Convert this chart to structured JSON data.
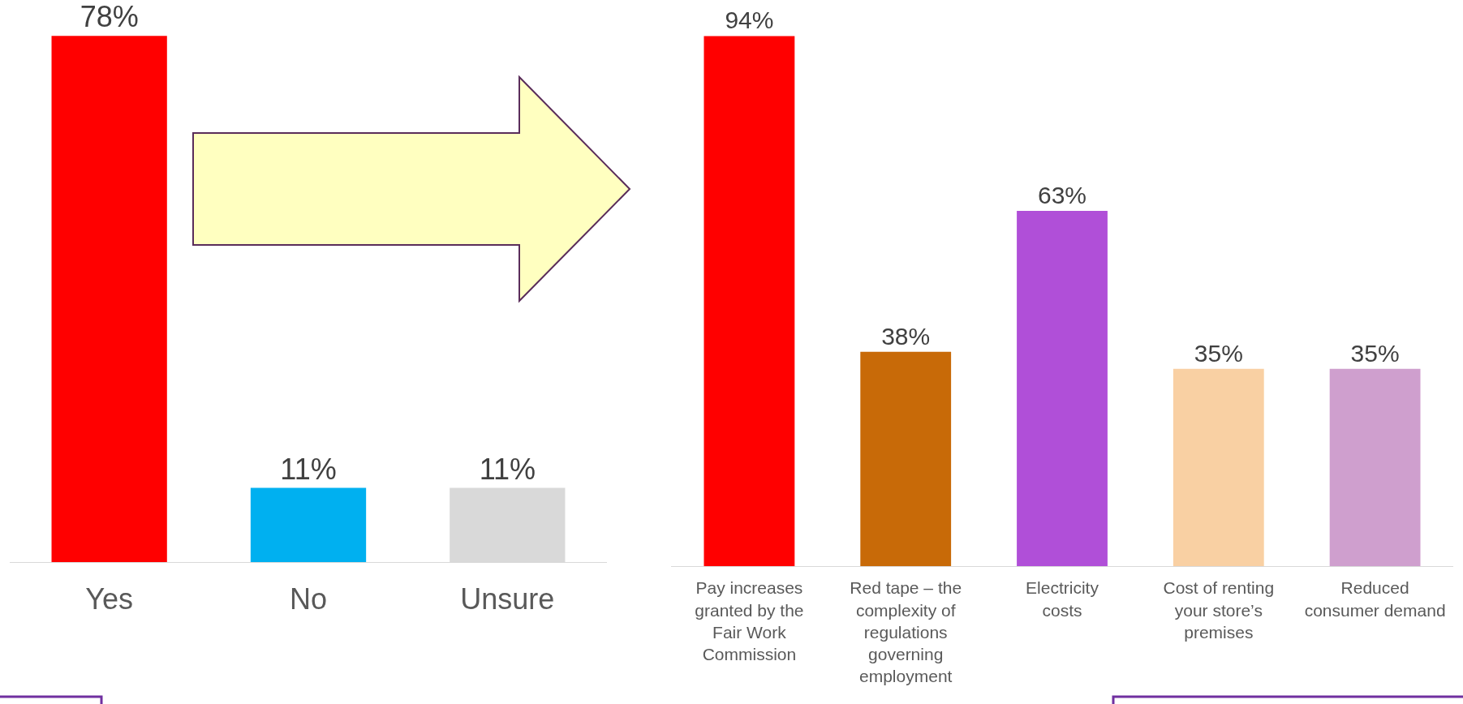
{
  "chart_data": [
    {
      "type": "bar",
      "categories": [
        "Yes",
        "No",
        "Unsure"
      ],
      "values": [
        78,
        11,
        11
      ],
      "value_labels": [
        "78%",
        "11%",
        "11%"
      ],
      "colors": [
        "#ff0000",
        "#00b0f0",
        "#d9d9d9"
      ],
      "tick_labels": "x"
    },
    {
      "type": "bar",
      "categories": [
        "Pay increases granted by the Fair Work Commission",
        "Red tape – the complexity of regulations governing employment",
        "Electricity costs",
        "Cost of renting your store’s premises",
        "Reduced consumer demand"
      ],
      "values": [
        94,
        38,
        63,
        35,
        35
      ],
      "value_labels": [
        "94%",
        "38%",
        "63%",
        "35%",
        "35%"
      ],
      "colors": [
        "#ff0000",
        "#c86a08",
        "#b04fd8",
        "#f9d0a3",
        "#cf9fce"
      ],
      "tick_labels": "x"
    }
  ]
}
